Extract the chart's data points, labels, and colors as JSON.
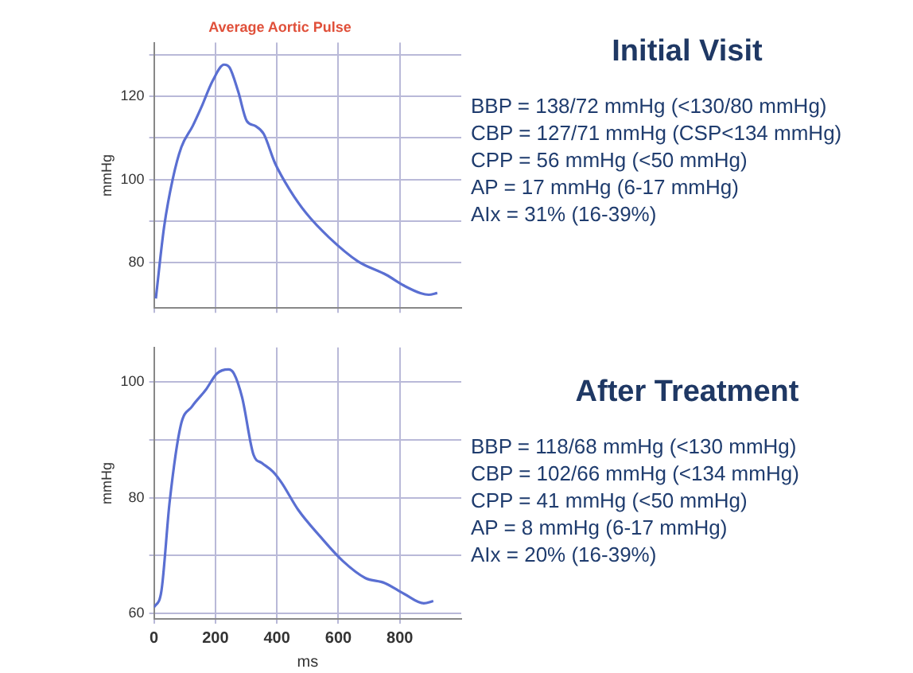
{
  "chart_data": [
    {
      "type": "line",
      "title": "Average Aortic Pulse",
      "ylabel": "mmHg",
      "tick_labels": "y",
      "grid": true,
      "legend": false,
      "marker": "none",
      "xlim": [
        0,
        1000
      ],
      "ylim": [
        69,
        133
      ],
      "xticks": [
        {
          "value": 0,
          "label": null
        },
        {
          "value": 200,
          "label": null
        },
        {
          "value": 400,
          "label": null
        },
        {
          "value": 600,
          "label": null
        },
        {
          "value": 800,
          "label": null
        }
      ],
      "yticks": [
        80,
        {
          "value": 90,
          "label": null
        },
        100,
        {
          "value": 110,
          "label": null
        },
        120,
        {
          "value": 130,
          "label": null
        }
      ],
      "series": [
        {
          "color": "#5a6fd2",
          "x": [
            6,
            33,
            61,
            89,
            126,
            154,
            191,
            228,
            246,
            274,
            302,
            330,
            357,
            394,
            441,
            496,
            570,
            663,
            756,
            811,
            867,
            894,
            922
          ],
          "values": [
            71.3,
            88.6,
            100.1,
            107.8,
            112.9,
            117.4,
            123.8,
            127.7,
            127,
            121.2,
            114.1,
            112.9,
            111,
            103.9,
            97.6,
            91.8,
            86,
            80.3,
            77,
            74.5,
            72.6,
            72.2,
            72.6
          ]
        }
      ]
    },
    {
      "type": "other",
      "title": "Initial Visit",
      "annotations": [
        "BBP = 138/72 mmHg (<130/80 mmHg)",
        "CBP = 127/71 mmHg (CSP<134 mmHg)",
        "CPP = 56 mmHg (<50 mmHg)",
        "AP = 17 mmHg (6-17 mmHg)",
        "AIx = 31% (16-39%)"
      ]
    },
    {
      "type": "line",
      "xlabel": "ms",
      "ylabel": "mmHg",
      "grid": true,
      "legend": false,
      "marker": "none",
      "xlim": [
        0,
        1000
      ],
      "ylim": [
        59,
        106
      ],
      "xticks": [
        0,
        200,
        400,
        600,
        800
      ],
      "yticks": [
        60,
        {
          "value": 70,
          "label": null
        },
        80,
        {
          "value": 90,
          "label": null
        },
        100
      ],
      "series": [
        {
          "color": "#5a6fd2",
          "x": [
            0,
            24,
            51,
            87,
            124,
            169,
            205,
            242,
            260,
            287,
            324,
            351,
            387,
            415,
            469,
            542,
            615,
            687,
            751,
            815,
            878,
            909
          ],
          "values": [
            61,
            63.8,
            79.3,
            92.5,
            95.8,
            98.7,
            101.5,
            102.2,
            101.5,
            97.3,
            87.4,
            86,
            84.5,
            82.6,
            77.9,
            73.2,
            69,
            66.1,
            65.2,
            63.3,
            61.7,
            62.1
          ]
        }
      ]
    },
    {
      "type": "other",
      "title": "After Treatment",
      "annotations": [
        "BBP = 118/68 mmHg (<130 mmHg)",
        "CBP = 102/66 mmHg (<134 mmHg)",
        "CPP = 41 mmHg (<50 mmHg)",
        "AP = 8 mmHg (6-17 mmHg)",
        "AIx = 20% (16-39%)"
      ]
    }
  ]
}
